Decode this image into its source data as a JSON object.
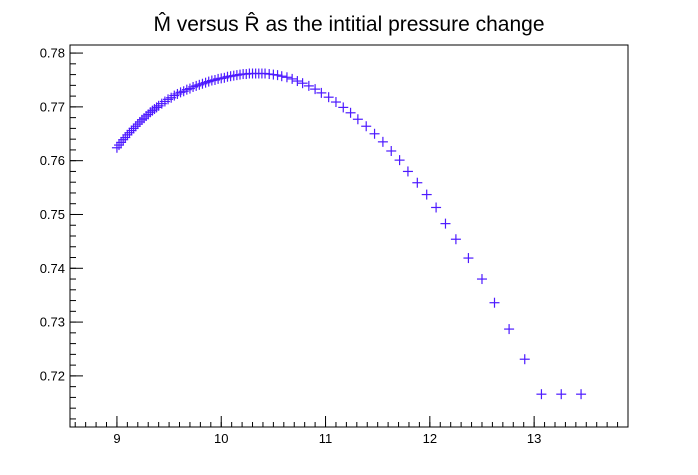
{
  "chart_data": {
    "type": "scatter",
    "title": "M̂ versus R̂ as the intitial pressure change",
    "xlabel": "",
    "ylabel": "",
    "xlim": [
      8.55,
      13.9
    ],
    "ylim": [
      0.7105,
      0.7815
    ],
    "x_ticks": [
      9,
      10,
      11,
      12,
      13
    ],
    "y_ticks": [
      0.72,
      0.73,
      0.74,
      0.75,
      0.76,
      0.77,
      0.78
    ],
    "x_tick_labels": [
      "9",
      "10",
      "11",
      "12",
      "13"
    ],
    "y_tick_labels": [
      "0.72",
      "0.73",
      "0.74",
      "0.75",
      "0.76",
      "0.77",
      "0.78"
    ],
    "grid": false,
    "marker": "plus",
    "marker_color": "#4d1aff",
    "series": [
      {
        "x": [
          9.0,
          9.02,
          9.04,
          9.06,
          9.08,
          9.1,
          9.12,
          9.14,
          9.16,
          9.18,
          9.2,
          9.22,
          9.24,
          9.26,
          9.28,
          9.3,
          9.32,
          9.34,
          9.36,
          9.38,
          9.4,
          9.43,
          9.46,
          9.49,
          9.52,
          9.55,
          9.58,
          9.61,
          9.64,
          9.67,
          9.7,
          9.73,
          9.76,
          9.79,
          9.82,
          9.85,
          9.88,
          9.91,
          9.94,
          9.97,
          10.0,
          10.03,
          10.06,
          10.09,
          10.12,
          10.15,
          10.18,
          10.21,
          10.24,
          10.27,
          10.3,
          10.33,
          10.36,
          10.39,
          10.42,
          10.46,
          10.5,
          10.54,
          10.58,
          10.63,
          10.68,
          10.73,
          10.78,
          10.84,
          10.9,
          10.96,
          11.03,
          11.1,
          11.17,
          11.24,
          11.31,
          11.39,
          11.47,
          11.55,
          11.63,
          11.71,
          11.79,
          11.88,
          11.97,
          12.06,
          12.15,
          12.25,
          12.37,
          12.5,
          12.62,
          12.76,
          12.91,
          13.07,
          13.26,
          13.45
        ],
        "y": [
          0.7624,
          0.7629,
          0.7634,
          0.7639,
          0.7643,
          0.7648,
          0.7652,
          0.7656,
          0.766,
          0.7664,
          0.7668,
          0.7672,
          0.7676,
          0.7679,
          0.7683,
          0.7686,
          0.769,
          0.7693,
          0.7696,
          0.7699,
          0.7702,
          0.7706,
          0.771,
          0.7714,
          0.7717,
          0.7721,
          0.7724,
          0.7727,
          0.7729,
          0.7732,
          0.7734,
          0.7737,
          0.7739,
          0.7741,
          0.7743,
          0.7745,
          0.7747,
          0.7749,
          0.775,
          0.7752,
          0.7753,
          0.7754,
          0.7756,
          0.7757,
          0.7758,
          0.7759,
          0.776,
          0.7761,
          0.7761,
          0.7762,
          0.7762,
          0.7762,
          0.7762,
          0.7762,
          0.7762,
          0.7761,
          0.776,
          0.7759,
          0.7757,
          0.7755,
          0.7752,
          0.7748,
          0.7744,
          0.7739,
          0.7733,
          0.7726,
          0.7718,
          0.7709,
          0.7699,
          0.7689,
          0.7677,
          0.7664,
          0.765,
          0.7635,
          0.7618,
          0.7601,
          0.758,
          0.7559,
          0.7537,
          0.7513,
          0.7483,
          0.7454,
          0.7419,
          0.738,
          0.7336,
          0.7287,
          0.7231,
          0.7166,
          0.7166,
          0.7166
        ]
      }
    ]
  }
}
